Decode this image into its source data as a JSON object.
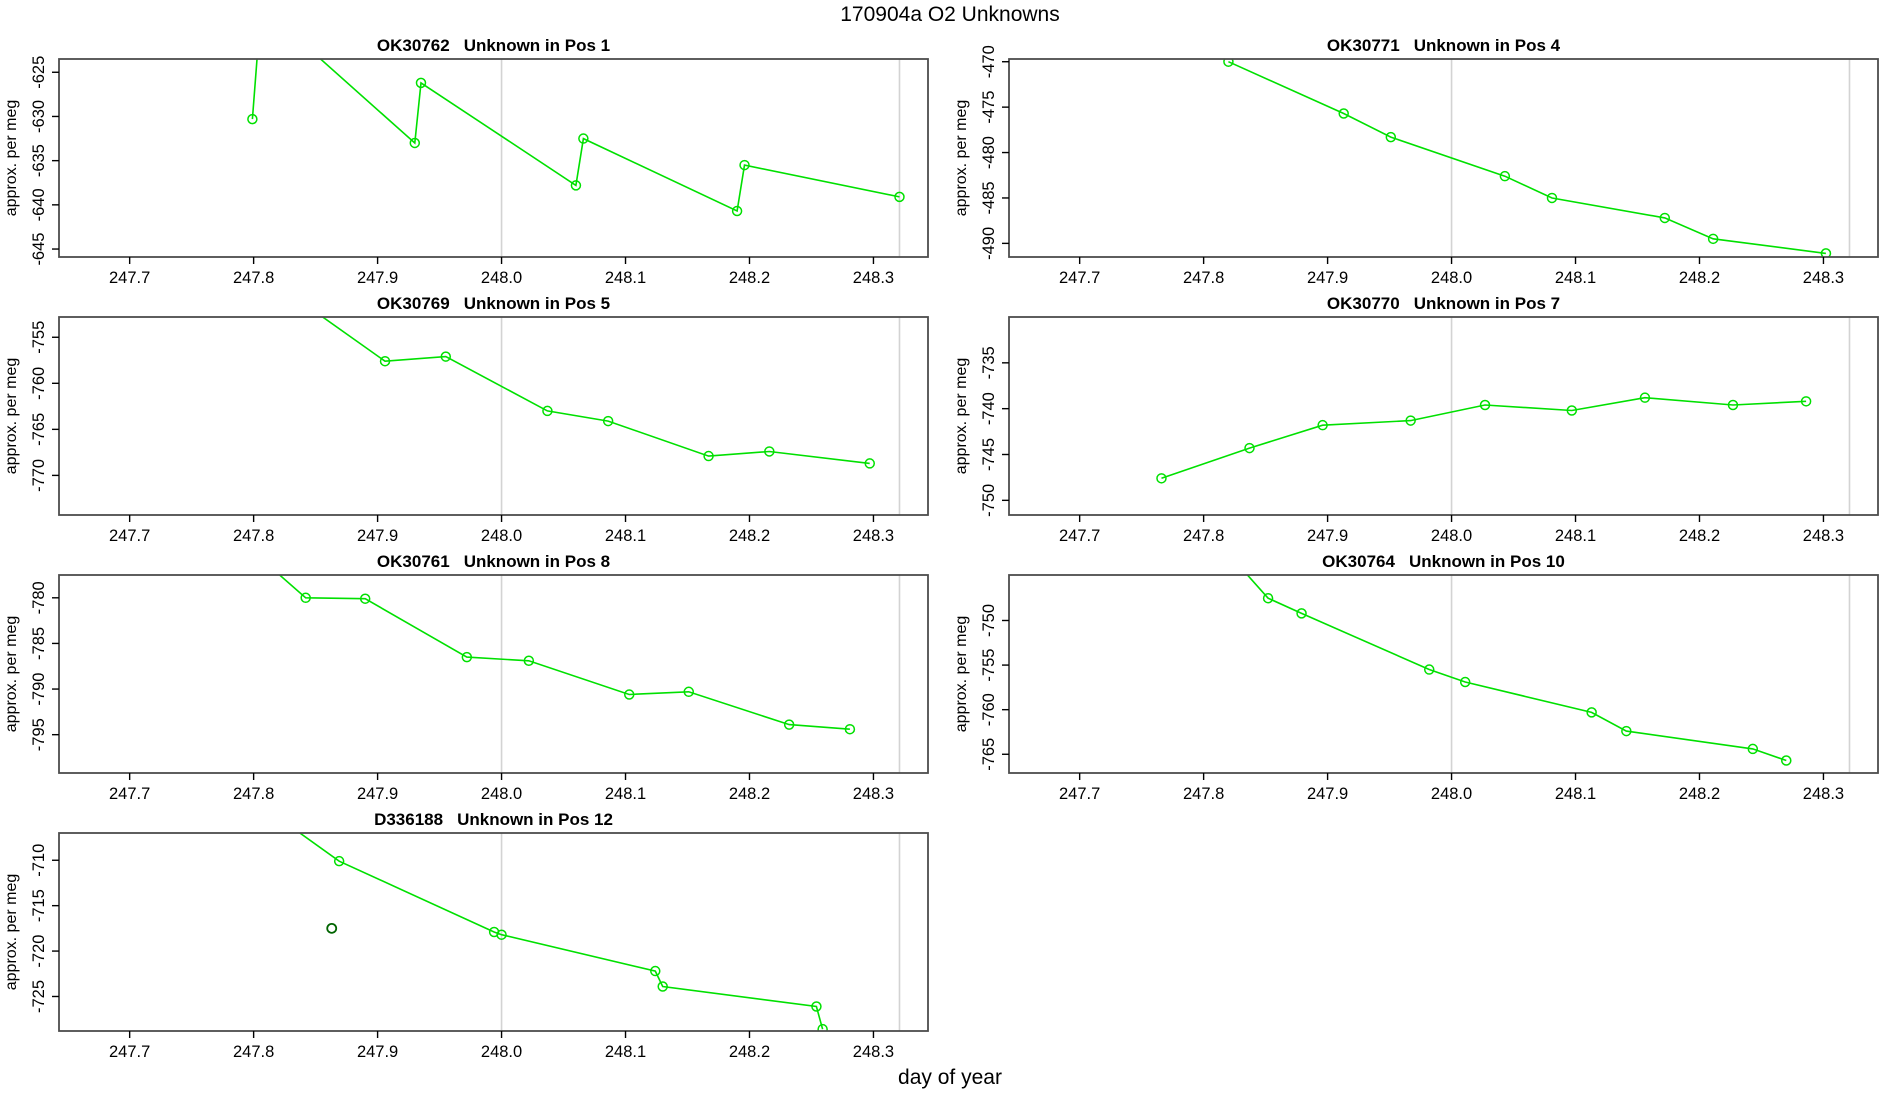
{
  "figure": {
    "title": "170904a  O2 Unknowns",
    "xlabel": "day of year"
  },
  "style": {
    "line_color": "#00e000",
    "dark_point_color": "#006400",
    "grid_color": "#d3d3d3",
    "border_color": "#4d4d4d",
    "text_color": "#000000",
    "background": "#ffffff"
  },
  "chart_data": [
    {
      "type": "line",
      "title_id": "OK30762",
      "title_desc": "Unknown in Pos 1",
      "ylabel": "approx. per meg",
      "xlim": [
        247.643,
        248.344
      ],
      "ylim": [
        -645.9,
        -623.5
      ],
      "xticks": [
        247.7,
        247.8,
        247.9,
        248.0,
        248.1,
        248.2,
        248.3
      ],
      "yticks": [
        -645,
        -640,
        -635,
        -630,
        -625
      ],
      "vlines": [
        248.0,
        248.321
      ],
      "x": [
        247.799,
        247.806,
        247.93,
        247.935,
        248.06,
        248.066,
        248.19,
        248.196,
        248.321
      ],
      "y": [
        -630.3,
        -617.5,
        -633.0,
        -626.2,
        -637.8,
        -632.5,
        -640.7,
        -635.5,
        -639.1
      ],
      "extra_points": []
    },
    {
      "type": "line",
      "title_id": "OK30771",
      "title_desc": "Unknown in Pos 4",
      "ylabel": "approx. per meg",
      "xlim": [
        247.643,
        248.344
      ],
      "ylim": [
        -491.5,
        -469.7
      ],
      "xticks": [
        247.7,
        247.8,
        247.9,
        248.0,
        248.1,
        248.2,
        248.3
      ],
      "yticks": [
        -490,
        -485,
        -480,
        -475,
        -470
      ],
      "vlines": [
        248.0,
        248.321
      ],
      "x": [
        247.82,
        247.913,
        247.951,
        248.043,
        248.081,
        248.172,
        248.211,
        248.302
      ],
      "y": [
        -470.0,
        -475.7,
        -478.3,
        -482.6,
        -485.0,
        -487.2,
        -489.5,
        -491.1
      ],
      "extra_points": []
    },
    {
      "type": "line",
      "title_id": "OK30769",
      "title_desc": "Unknown in Pos 5",
      "ylabel": "approx. per meg",
      "xlim": [
        247.643,
        248.344
      ],
      "ylim": [
        -774.3,
        -752.8
      ],
      "xticks": [
        247.7,
        247.8,
        247.9,
        248.0,
        248.1,
        248.2,
        248.3
      ],
      "yticks": [
        -770,
        -765,
        -760,
        -755
      ],
      "vlines": [
        248.0,
        248.321
      ],
      "x": [
        247.84,
        247.906,
        247.955,
        248.037,
        248.086,
        248.167,
        248.216,
        248.297
      ],
      "y": [
        -751.3,
        -757.6,
        -757.1,
        -763.0,
        -764.1,
        -767.9,
        -767.4,
        -768.7
      ],
      "extra_points": []
    },
    {
      "type": "line",
      "title_id": "OK30770",
      "title_desc": "Unknown in Pos 7",
      "ylabel": "approx. per meg",
      "xlim": [
        247.643,
        248.344
      ],
      "ylim": [
        -751.6,
        -730.0
      ],
      "xticks": [
        247.7,
        247.8,
        247.9,
        248.0,
        248.1,
        248.2,
        248.3
      ],
      "yticks": [
        -750,
        -745,
        -740,
        -735
      ],
      "vlines": [
        248.0,
        248.321
      ],
      "x": [
        247.766,
        247.837,
        247.896,
        247.967,
        248.027,
        248.097,
        248.156,
        248.227,
        248.286
      ],
      "y": [
        -747.6,
        -744.3,
        -741.8,
        -741.3,
        -739.6,
        -740.2,
        -738.8,
        -739.6,
        -739.2
      ],
      "extra_points": []
    },
    {
      "type": "line",
      "title_id": "OK30761",
      "title_desc": "Unknown in Pos 8",
      "ylabel": "approx. per meg",
      "xlim": [
        247.643,
        248.344
      ],
      "ylim": [
        -799.2,
        -777.5
      ],
      "xticks": [
        247.7,
        247.8,
        247.9,
        248.0,
        248.1,
        248.2,
        248.3
      ],
      "yticks": [
        -795,
        -790,
        -785,
        -780
      ],
      "vlines": [
        248.0,
        248.321
      ],
      "x": [
        247.8,
        247.842,
        247.89,
        247.972,
        248.022,
        248.103,
        248.151,
        248.232,
        248.281
      ],
      "y": [
        -775.0,
        -780.0,
        -780.1,
        -786.5,
        -786.9,
        -790.6,
        -790.3,
        -793.9,
        -794.4
      ],
      "extra_points": []
    },
    {
      "type": "line",
      "title_id": "OK30764",
      "title_desc": "Unknown in Pos 10",
      "ylabel": "approx. per meg",
      "xlim": [
        247.643,
        248.344
      ],
      "ylim": [
        -767.1,
        -744.9
      ],
      "xticks": [
        247.7,
        247.8,
        247.9,
        248.0,
        248.1,
        248.2,
        248.3
      ],
      "yticks": [
        -765,
        -760,
        -755,
        -750
      ],
      "vlines": [
        248.0,
        248.321
      ],
      "x": [
        247.82,
        247.852,
        247.879,
        247.982,
        248.011,
        248.113,
        248.141,
        248.243,
        248.27
      ],
      "y": [
        -742.5,
        -747.5,
        -749.2,
        -755.5,
        -756.9,
        -760.3,
        -762.4,
        -764.4,
        -765.7
      ],
      "extra_points": []
    },
    {
      "type": "line",
      "title_id": "D336188",
      "title_desc": "Unknown in Pos 12",
      "ylabel": "approx. per meg",
      "xlim": [
        247.643,
        248.344
      ],
      "ylim": [
        -728.8,
        -707.0
      ],
      "xticks": [
        247.7,
        247.8,
        247.9,
        248.0,
        248.1,
        248.2,
        248.3
      ],
      "yticks": [
        -725,
        -720,
        -715,
        -710
      ],
      "vlines": [
        248.0,
        248.321
      ],
      "x": [
        247.82,
        247.869,
        247.994,
        248.0,
        248.124,
        248.13,
        248.254,
        248.259
      ],
      "y": [
        -705.3,
        -710.1,
        -717.9,
        -718.2,
        -722.2,
        -723.9,
        -726.1,
        -728.6
      ],
      "extra_points": [
        {
          "x": 247.863,
          "y": -717.5,
          "color": "dark"
        }
      ]
    }
  ]
}
